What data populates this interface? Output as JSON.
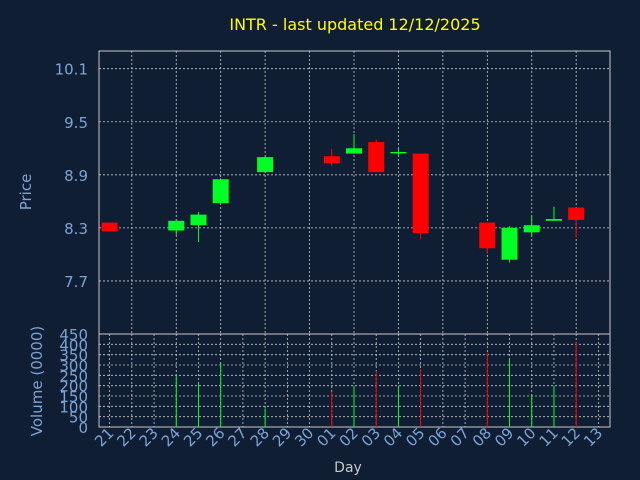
{
  "chart_data": {
    "type": "candlestick",
    "title": "INTR - last updated 12/12/2025",
    "xlabel": "Day",
    "price_ylabel": "Price",
    "volume_ylabel": "Volume (0000)",
    "price_ticks": [
      "10.1",
      "9.5",
      "8.9",
      "8.3",
      "7.7"
    ],
    "price_ylim": [
      7.1,
      10.3
    ],
    "volume_ticks": [
      "450",
      "400",
      "350",
      "300",
      "250",
      "200",
      "150",
      "100",
      "50",
      "0"
    ],
    "volume_ylim": [
      0,
      450
    ],
    "x_labels": [
      "21",
      "22",
      "23",
      "24",
      "25",
      "26",
      "27",
      "28",
      "29",
      "30",
      "01",
      "02",
      "03",
      "04",
      "05",
      "06",
      "07",
      "08",
      "09",
      "10",
      "11",
      "12",
      "13"
    ],
    "grid": true,
    "colors": {
      "up": "#00ff22",
      "down": "#ff0000",
      "text": "#7aa4d6",
      "title": "#ffff00",
      "grid": "#c8c8c8",
      "panel": "#0f1e33"
    },
    "candles": [
      {
        "day": "21",
        "open": 8.36,
        "close": 8.26,
        "high": 8.36,
        "low": 8.26,
        "volume": 0
      },
      {
        "day": "24",
        "open": 8.27,
        "close": 8.38,
        "high": 8.4,
        "low": 8.22,
        "volume": 250
      },
      {
        "day": "25",
        "open": 8.33,
        "close": 8.45,
        "high": 8.48,
        "low": 8.14,
        "volume": 210
      },
      {
        "day": "26",
        "open": 8.58,
        "close": 8.85,
        "high": 8.86,
        "low": 8.57,
        "volume": 310
      },
      {
        "day": "28",
        "open": 8.93,
        "close": 9.1,
        "high": 9.11,
        "low": 8.92,
        "volume": 90
      },
      {
        "day": "01",
        "open": 9.11,
        "close": 9.03,
        "high": 9.19,
        "low": 9.0,
        "volume": 170
      },
      {
        "day": "02",
        "open": 9.14,
        "close": 9.2,
        "high": 9.36,
        "low": 9.14,
        "volume": 200
      },
      {
        "day": "03",
        "open": 9.27,
        "close": 8.93,
        "high": 9.3,
        "low": 8.93,
        "volume": 270
      },
      {
        "day": "04",
        "open": 9.14,
        "close": 9.15,
        "high": 9.2,
        "low": 9.11,
        "volume": 200
      },
      {
        "day": "05",
        "open": 9.14,
        "close": 8.24,
        "high": 9.14,
        "low": 8.17,
        "volume": 280
      },
      {
        "day": "08",
        "open": 8.36,
        "close": 8.07,
        "high": 8.36,
        "low": 8.01,
        "volume": 360
      },
      {
        "day": "09",
        "open": 7.94,
        "close": 8.3,
        "high": 8.32,
        "low": 7.91,
        "volume": 330
      },
      {
        "day": "10",
        "open": 8.25,
        "close": 8.33,
        "high": 8.43,
        "low": 8.2,
        "volume": 160
      },
      {
        "day": "11",
        "open": 8.38,
        "close": 8.4,
        "high": 8.54,
        "low": 8.38,
        "volume": 200
      },
      {
        "day": "12",
        "open": 8.53,
        "close": 8.39,
        "high": 8.53,
        "low": 8.19,
        "volume": 410
      }
    ]
  }
}
